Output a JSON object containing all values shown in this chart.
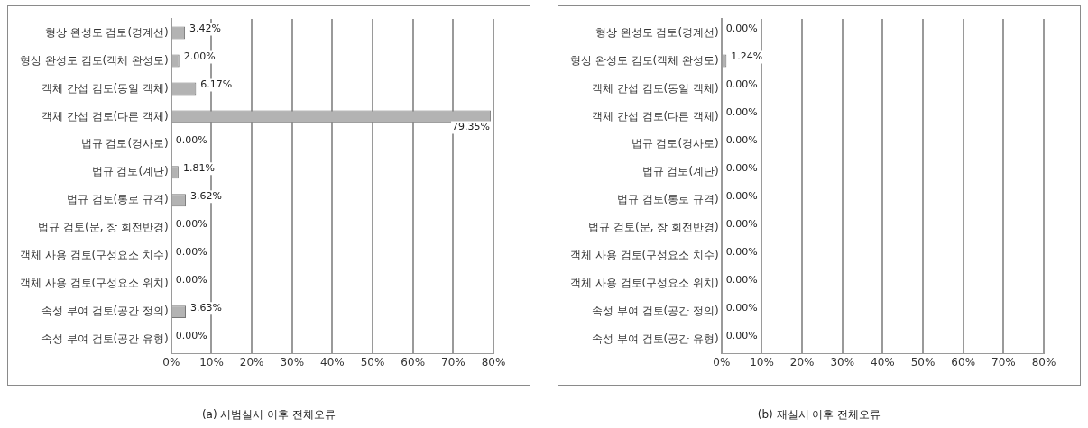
{
  "chart_data": [
    {
      "type": "bar",
      "orientation": "horizontal",
      "categories": [
        "형상 완성도 검토(경계선)",
        "형상 완성도 검토(객체 완성도)",
        "객체 간섭 검토(동일 객체)",
        "객체 간섭 검토(다른 객체)",
        "법규 검토(경사로)",
        "법규 검토(계단)",
        "법규 검토(통로 규격)",
        "법규 검토(문, 창 회전반경)",
        "객체 사용 검토(구성요소 치수)",
        "객체 사용 검토(구성요소 위치)",
        "속성 부여 검토(공간 정의)",
        "속성 부여 검토(공간 유형)"
      ],
      "values": [
        3.42,
        2.0,
        6.17,
        79.35,
        0.0,
        1.81,
        3.62,
        0.0,
        0.0,
        0.0,
        3.63,
        0.0
      ],
      "value_labels": [
        "3.42%",
        "2.00%",
        "6.17%",
        "79.35%",
        "0.00%",
        "1.81%",
        "3.62%",
        "0.00%",
        "0.00%",
        "0.00%",
        "3.63%",
        "0.00%"
      ],
      "color": "#b3b3b3",
      "xlim": [
        0,
        80
      ],
      "xticks": [
        {
          "value": 0,
          "label": "0%"
        },
        {
          "value": 10,
          "label": "10%"
        },
        {
          "value": 20,
          "label": "20%"
        },
        {
          "value": 30,
          "label": "30%"
        },
        {
          "value": 40,
          "label": "40%"
        },
        {
          "value": 50,
          "label": "50%"
        },
        {
          "value": 60,
          "label": "60%"
        },
        {
          "value": 70,
          "label": "70%"
        },
        {
          "value": 80,
          "label": "80%"
        }
      ],
      "grid": "x",
      "legend": false,
      "annotations": [
        "(a) 시범실시 이후 전체오류"
      ]
    },
    {
      "type": "bar",
      "orientation": "horizontal",
      "categories": [
        "형상 완성도 검토(경계선)",
        "형상 완성도 검토(객체 완성도)",
        "객체 간섭 검토(동일 객체)",
        "객체 간섭 검토(다른 객체)",
        "법규 검토(경사로)",
        "법규 검토(계단)",
        "법규 검토(통로 규격)",
        "법규 검토(문, 창 회전반경)",
        "객체 사용 검토(구성요소 치수)",
        "객체 사용 검토(구성요소 위치)",
        "속성 부여 검토(공간 정의)",
        "속성 부여 검토(공간 유형)"
      ],
      "values": [
        0.0,
        1.24,
        0.0,
        0.0,
        0.0,
        0.0,
        0.0,
        0.0,
        0.0,
        0.0,
        0.0,
        0.0
      ],
      "value_labels": [
        "0.00%",
        "1.24%",
        "0.00%",
        "0.00%",
        "0.00%",
        "0.00%",
        "0.00%",
        "0.00%",
        "0.00%",
        "0.00%",
        "0.00%",
        "0.00%"
      ],
      "color": "#b3b3b3",
      "xlim": [
        0,
        80
      ],
      "xticks": [
        {
          "value": 0,
          "label": "0%"
        },
        {
          "value": 10,
          "label": "10%"
        },
        {
          "value": 20,
          "label": "20%"
        },
        {
          "value": 30,
          "label": "30%"
        },
        {
          "value": 40,
          "label": "40%"
        },
        {
          "value": 50,
          "label": "50%"
        },
        {
          "value": 60,
          "label": "60%"
        },
        {
          "value": 70,
          "label": "70%"
        },
        {
          "value": 80,
          "label": "80%"
        }
      ],
      "grid": "x",
      "legend": false,
      "annotations": [
        "(b) 재실시 이후 전체오류"
      ]
    }
  ]
}
